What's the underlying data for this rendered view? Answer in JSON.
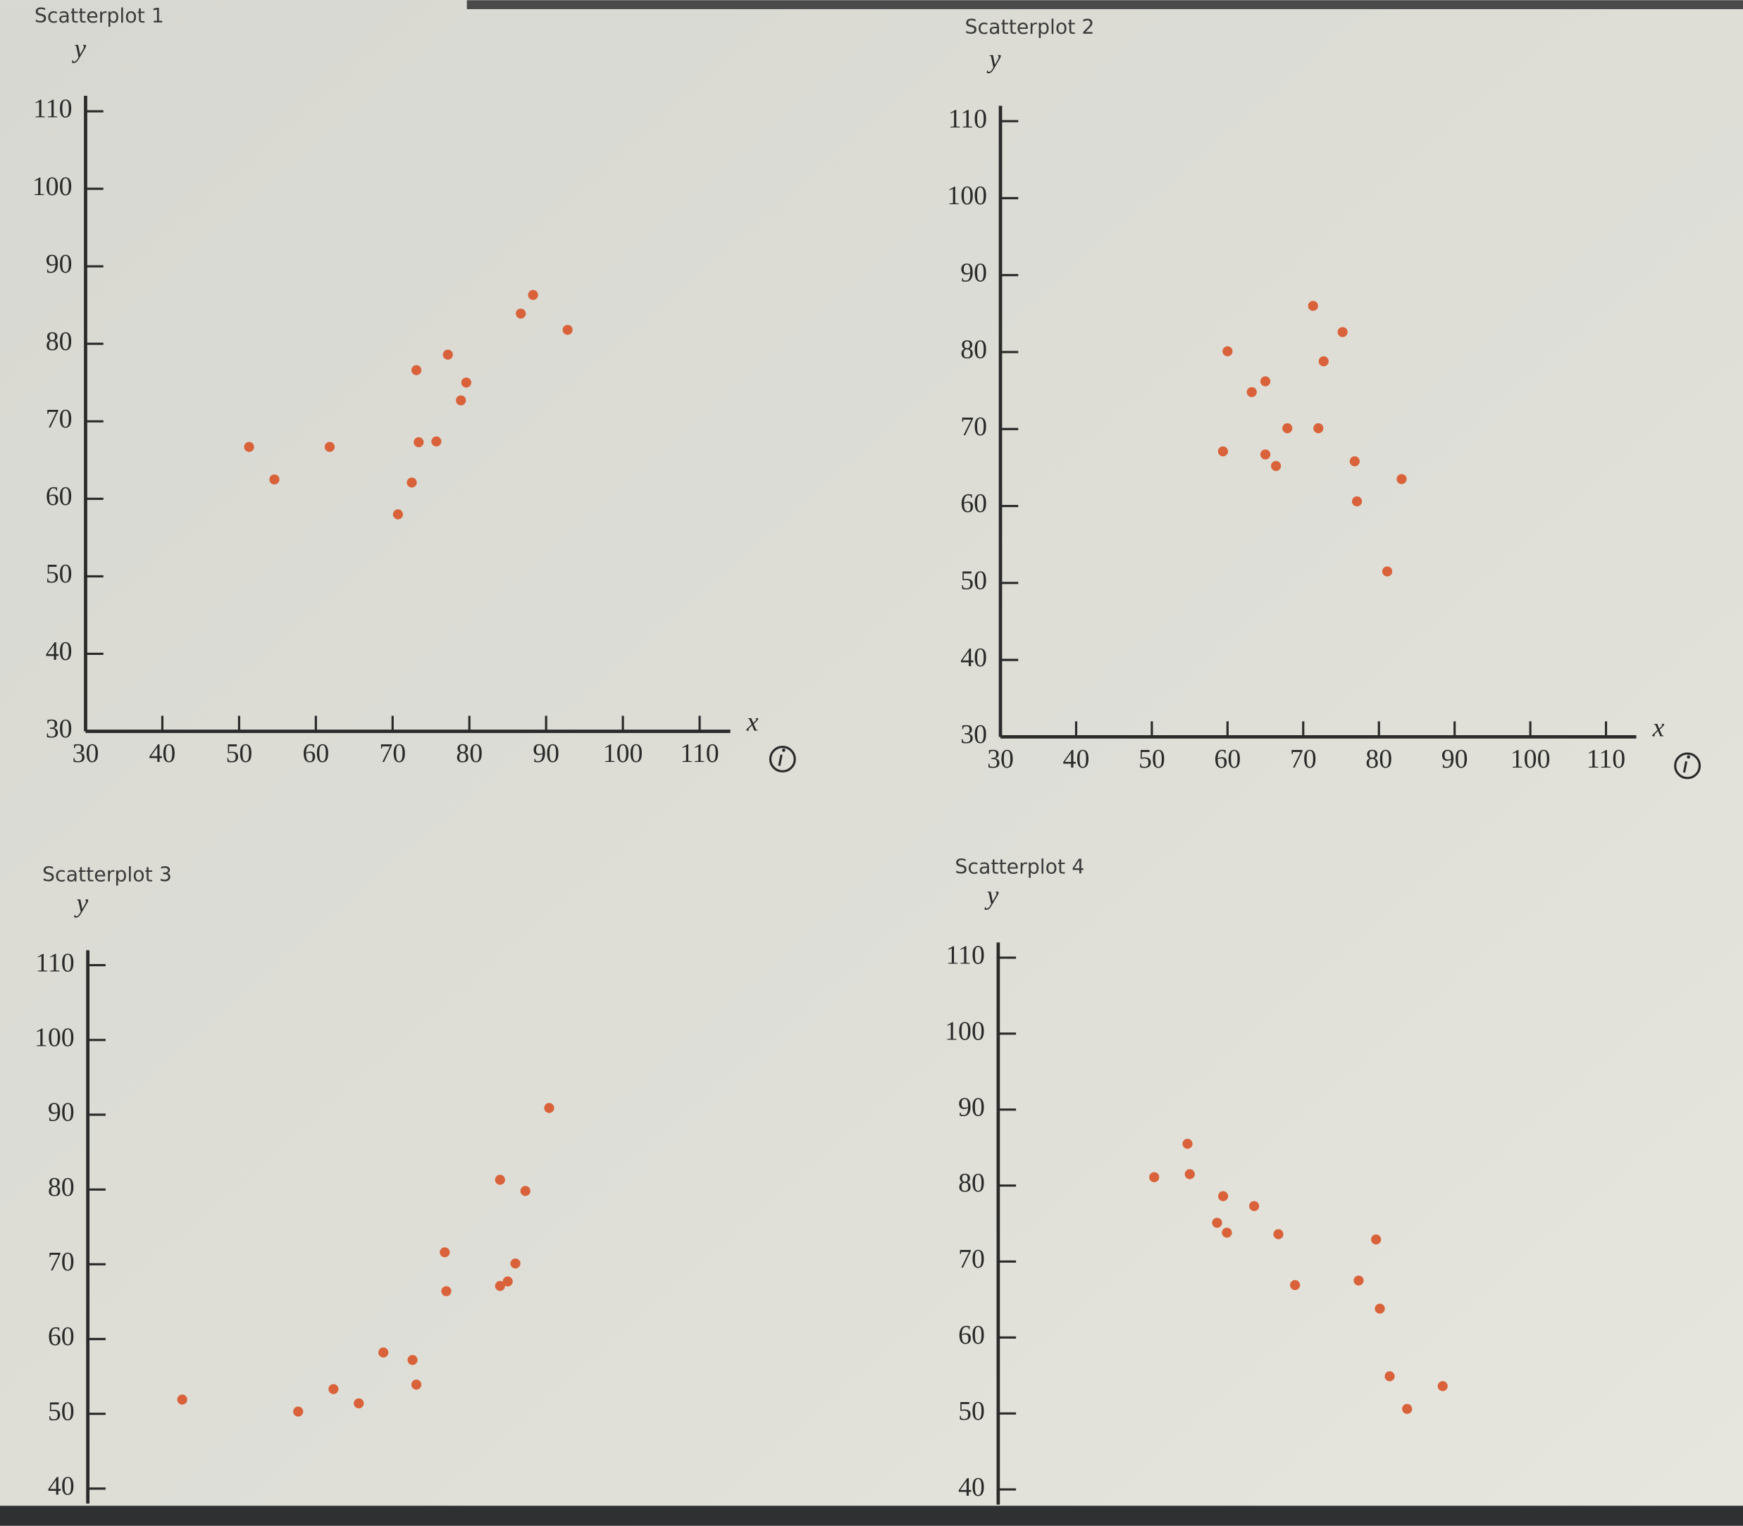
{
  "chart_data": [
    {
      "type": "scatter",
      "title": "Scatterplot 1",
      "x_label": "x",
      "y_label": "y",
      "color": "#d9623a",
      "x": [
        51.3,
        54.6,
        61.8,
        70.7,
        72.5,
        73.1,
        73.4,
        75.7,
        77.2,
        78.9,
        79.6,
        86.7,
        88.3,
        92.8
      ],
      "y": [
        66.7,
        62.5,
        66.7,
        58.0,
        62.1,
        76.6,
        67.3,
        67.4,
        78.6,
        72.7,
        75.0,
        83.9,
        86.3,
        81.8
      ],
      "xlim": [
        30,
        114
      ],
      "ylim": [
        30,
        112
      ],
      "xticks": [
        30,
        40,
        50,
        60,
        70,
        80,
        90,
        100,
        110
      ],
      "yticks": [
        30,
        40,
        50,
        60,
        70,
        80,
        90,
        100,
        110
      ]
    },
    {
      "type": "scatter",
      "title": "Scatterplot 2",
      "x_label": "x",
      "y_label": "y",
      "color": "#d9623a",
      "x": [
        60.0,
        59.4,
        63.2,
        65.0,
        65.0,
        66.4,
        67.9,
        71.3,
        72.0,
        72.7,
        75.2,
        76.8,
        77.1,
        81.1,
        83.0
      ],
      "y": [
        80.1,
        67.1,
        74.8,
        76.2,
        66.7,
        65.2,
        70.1,
        86.0,
        70.1,
        78.8,
        82.6,
        65.8,
        60.6,
        51.5,
        63.5
      ],
      "xlim": [
        30,
        114
      ],
      "ylim": [
        30,
        112
      ],
      "xticks": [
        30,
        40,
        50,
        60,
        70,
        80,
        90,
        100,
        110
      ],
      "yticks": [
        30,
        40,
        50,
        60,
        70,
        80,
        90,
        100,
        110
      ]
    },
    {
      "type": "scatter",
      "title": "Scatterplot 3",
      "y_label": "y",
      "color": "#d9623a",
      "x": [
        42.3,
        57.4,
        62.0,
        65.3,
        68.5,
        72.3,
        72.8,
        76.5,
        76.7,
        83.7,
        84.7,
        83.7,
        85.7,
        87.0,
        90.1
      ],
      "y": [
        51.9,
        50.3,
        53.3,
        51.4,
        58.2,
        57.2,
        53.9,
        71.6,
        66.4,
        67.1,
        67.7,
        81.3,
        70.1,
        79.8,
        90.9
      ],
      "xlim": [
        30,
        115
      ],
      "ylim": [
        38,
        112
      ],
      "yticks": [
        40,
        50,
        60,
        70,
        80,
        90,
        100,
        110
      ]
    },
    {
      "type": "scatter",
      "title": "Scatterplot 4",
      "y_label": "y",
      "color": "#d9623a",
      "x": [
        50.6,
        55.0,
        55.3,
        59.7,
        58.9,
        60.2,
        63.8,
        67.0,
        69.2,
        77.6,
        79.9,
        80.4,
        81.7,
        84.0,
        88.7
      ],
      "y": [
        81.1,
        85.5,
        81.5,
        78.6,
        75.1,
        73.8,
        77.3,
        73.6,
        66.9,
        67.5,
        72.9,
        63.8,
        54.9,
        50.6,
        53.6
      ],
      "xlim": [
        30,
        115
      ],
      "ylim": [
        38,
        112
      ],
      "yticks": [
        40,
        50,
        60,
        70,
        80,
        90,
        100,
        110
      ]
    }
  ]
}
